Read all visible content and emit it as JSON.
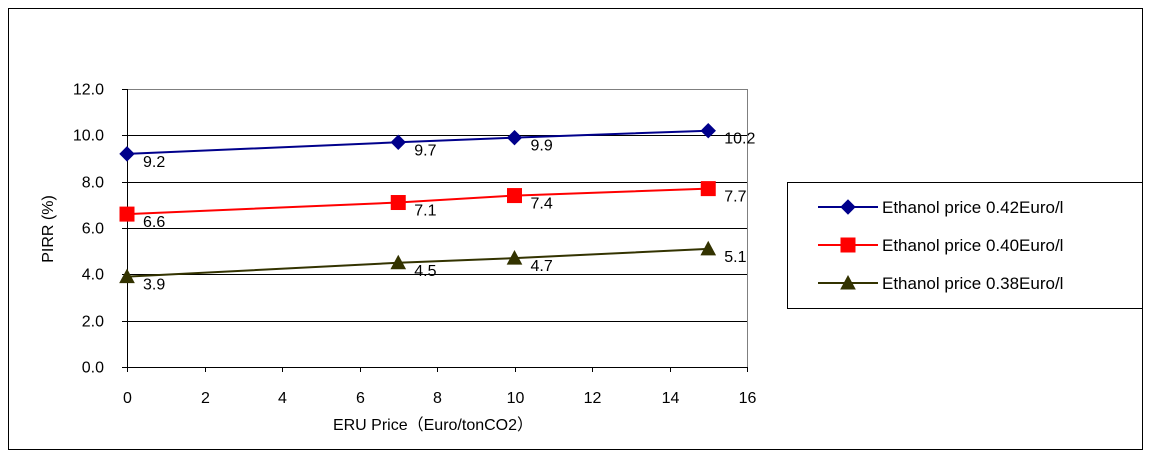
{
  "chart_data": {
    "type": "line",
    "title": "",
    "xlabel": "ERU Price（Euro/tonCO2）",
    "ylabel": "PIRR (%)",
    "xlim": [
      0,
      16
    ],
    "ylim": [
      0,
      12
    ],
    "x_ticks": [
      0,
      2,
      4,
      6,
      8,
      10,
      12,
      14,
      16
    ],
    "y_ticks": [
      0,
      2,
      4,
      6,
      8,
      10,
      12
    ],
    "x_tick_labels": [
      "0",
      "2",
      "4",
      "6",
      "8",
      "10",
      "12",
      "14",
      "16"
    ],
    "y_tick_labels": [
      "0.0",
      "2.0",
      "4.0",
      "6.0",
      "8.0",
      "10.0",
      "12.0"
    ],
    "grid": "horizontal",
    "legend_position": "right",
    "x": [
      0,
      7,
      10,
      15
    ],
    "series": [
      {
        "name": "Ethanol price 0.42Euro/l",
        "color": "#00008b",
        "marker": "diamond",
        "values": [
          9.2,
          9.7,
          9.9,
          10.2
        ],
        "labels": [
          "9.2",
          "9.7",
          "9.9",
          "10.2"
        ]
      },
      {
        "name": "Ethanol price 0.40Euro/l",
        "color": "#ff0000",
        "marker": "square",
        "values": [
          6.6,
          7.1,
          7.4,
          7.7
        ],
        "labels": [
          "6.6",
          "7.1",
          "7.4",
          "7.7"
        ]
      },
      {
        "name": "Ethanol price 0.38Euro/l",
        "color": "#333300",
        "marker": "triangle",
        "values": [
          3.9,
          4.5,
          4.7,
          5.1
        ],
        "labels": [
          "3.9",
          "4.5",
          "4.7",
          "5.1"
        ]
      }
    ]
  }
}
